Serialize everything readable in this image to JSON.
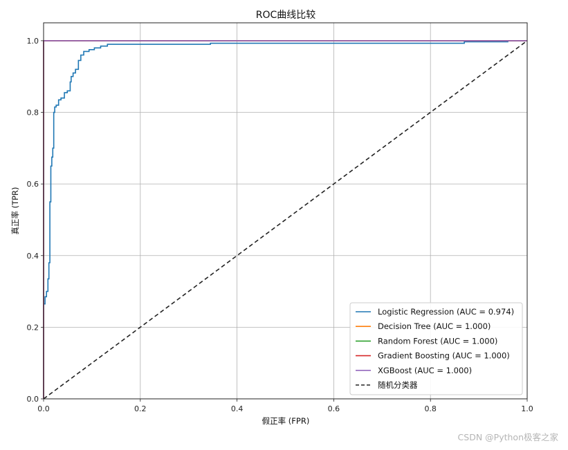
{
  "chart_data": {
    "type": "line",
    "title": "ROC曲线比较",
    "xlabel": "假正率 (FPR)",
    "ylabel": "真正率 (TPR)",
    "xlim": [
      0,
      1
    ],
    "ylim": [
      0,
      1.05
    ],
    "xticks": [
      "0.0",
      "0.2",
      "0.4",
      "0.6",
      "0.8",
      "1.0"
    ],
    "yticks": [
      "0.0",
      "0.2",
      "0.4",
      "0.6",
      "0.8",
      "1.0"
    ],
    "grid": true,
    "legend_position": "lower-right",
    "series": [
      {
        "name": "Logistic Regression (AUC = 0.974)",
        "color": "#1f77b4",
        "x": [
          0,
          0,
          0.003,
          0.003,
          0.006,
          0.006,
          0.009,
          0.009,
          0.011,
          0.011,
          0.013,
          0.013,
          0.015,
          0.015,
          0.017,
          0.017,
          0.019,
          0.019,
          0.021,
          0.021,
          0.023,
          0.023,
          0.026,
          0.026,
          0.031,
          0.031,
          0.036,
          0.036,
          0.043,
          0.043,
          0.049,
          0.049,
          0.055,
          0.055,
          0.057,
          0.057,
          0.061,
          0.061,
          0.066,
          0.066,
          0.072,
          0.072,
          0.077,
          0.077,
          0.083,
          0.083,
          0.094,
          0.094,
          0.105,
          0.105,
          0.118,
          0.118,
          0.132,
          0.132,
          0.345,
          0.345,
          0.87,
          0.87,
          0.96,
          0.96,
          1.0
        ],
        "y": [
          0,
          0.265,
          0.265,
          0.285,
          0.285,
          0.3,
          0.3,
          0.335,
          0.335,
          0.38,
          0.38,
          0.55,
          0.55,
          0.65,
          0.65,
          0.675,
          0.675,
          0.7,
          0.7,
          0.8,
          0.8,
          0.815,
          0.815,
          0.82,
          0.82,
          0.835,
          0.835,
          0.84,
          0.84,
          0.855,
          0.855,
          0.86,
          0.86,
          0.885,
          0.885,
          0.9,
          0.9,
          0.91,
          0.91,
          0.92,
          0.92,
          0.945,
          0.945,
          0.96,
          0.96,
          0.97,
          0.97,
          0.975,
          0.975,
          0.98,
          0.98,
          0.985,
          0.985,
          0.99,
          0.99,
          0.993,
          0.993,
          0.997,
          0.997,
          1.0,
          1.0
        ]
      },
      {
        "name": "Decision Tree (AUC = 1.000)",
        "color": "#ff7f0e",
        "x": [
          0,
          0,
          1
        ],
        "y": [
          0,
          1,
          1
        ]
      },
      {
        "name": "Random Forest (AUC = 1.000)",
        "color": "#2ca02c",
        "x": [
          0,
          0,
          1
        ],
        "y": [
          0,
          1,
          1
        ]
      },
      {
        "name": "Gradient Boosting (AUC = 1.000)",
        "color": "#d62728",
        "x": [
          0,
          0,
          1
        ],
        "y": [
          0,
          1,
          1
        ]
      },
      {
        "name": "XGBoost (AUC = 1.000)",
        "color": "#9467bd",
        "x": [
          0,
          0,
          1
        ],
        "y": [
          0,
          1,
          1
        ]
      },
      {
        "name": "随机分类器",
        "color": "#222222",
        "dashed": true,
        "x": [
          0,
          1
        ],
        "y": [
          0,
          1
        ]
      }
    ]
  },
  "watermark": "CSDN @Python极客之家"
}
